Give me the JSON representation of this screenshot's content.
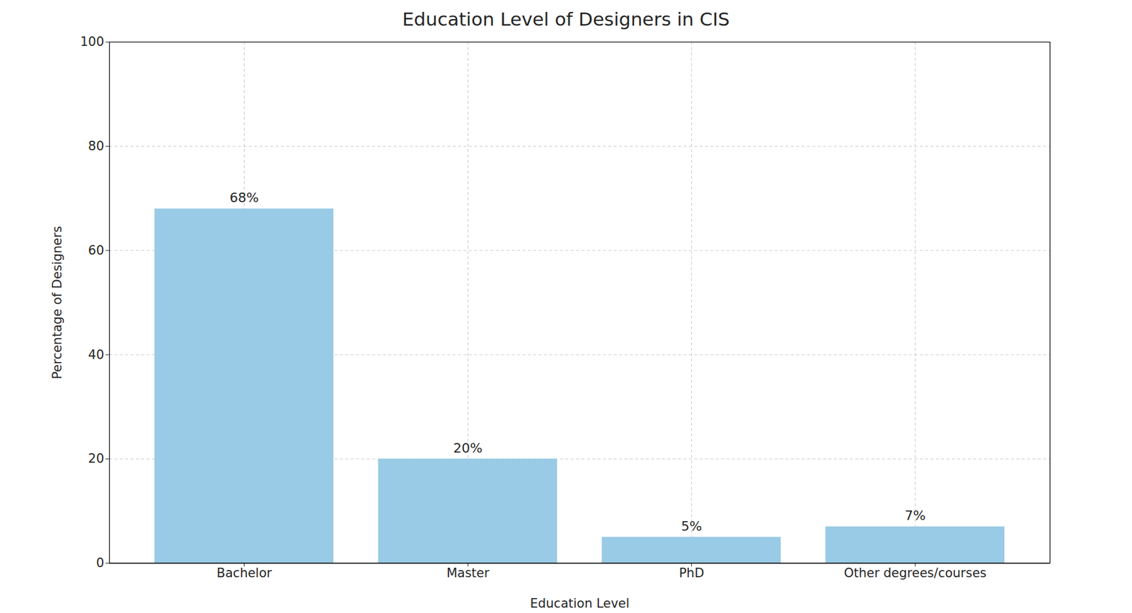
{
  "chart_data": {
    "type": "bar",
    "title": "Education Level of Designers in CIS",
    "x_label": "Education Level",
    "y_label": "Percentage of Designers",
    "categories": [
      "Bachelor",
      "Master",
      "PhD",
      "Other degrees/courses"
    ],
    "values": [
      68,
      20,
      5,
      7
    ],
    "value_labels": [
      "68%",
      "20%",
      "5%",
      "7%"
    ],
    "data_labels": true,
    "color": "#99cbe6",
    "ylim": [
      0,
      100
    ],
    "yticks": [
      0,
      20,
      40,
      60,
      80,
      100
    ],
    "grid": true
  }
}
